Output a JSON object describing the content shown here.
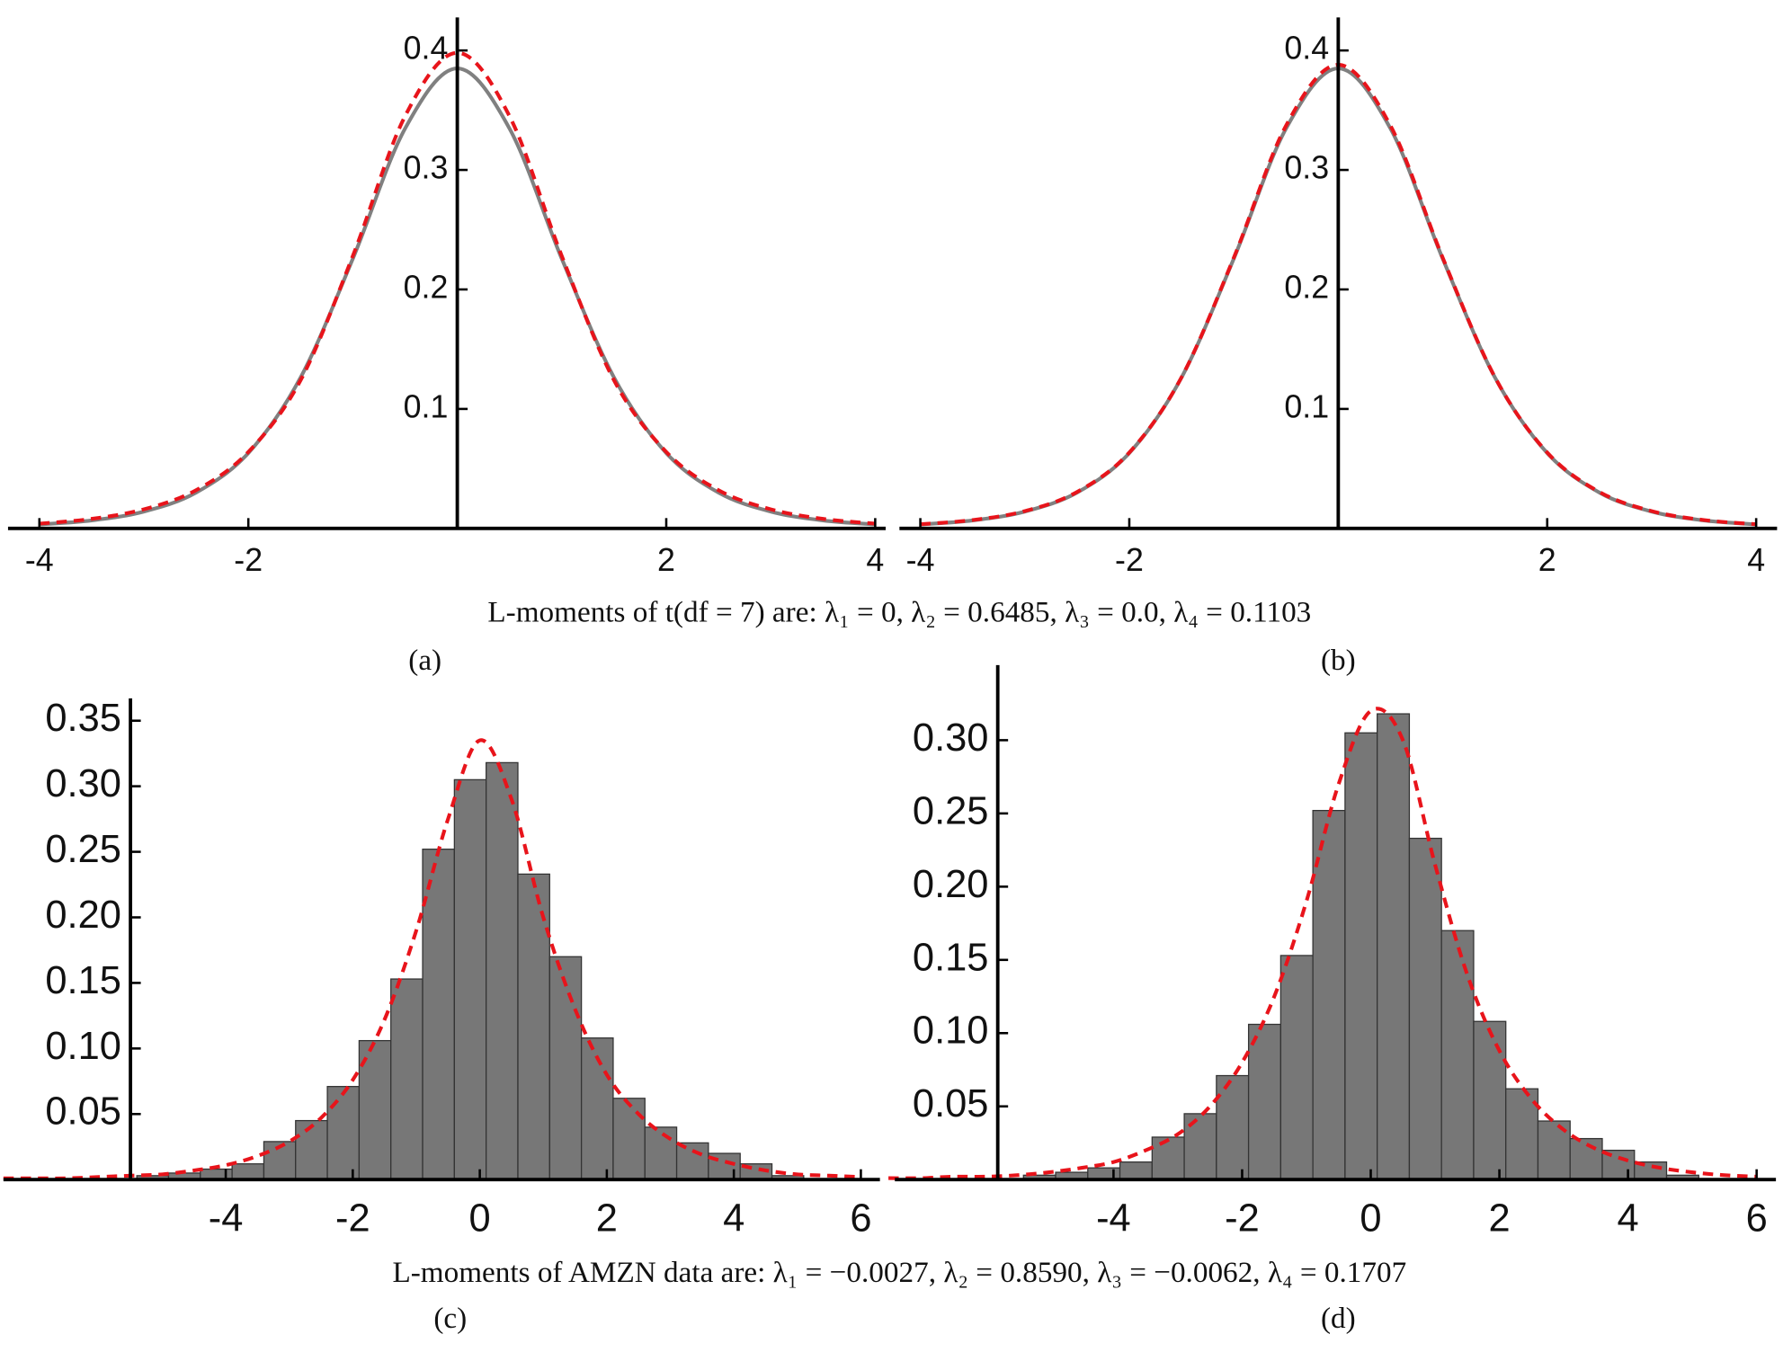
{
  "figure_captions": [
    "L-moments of t(df = 7) are: λ₁ = 0, λ₂ = 0.6485, λ₃ = 0.0, λ₄ = 0.1103",
    "L-moments of AMZN data are: λ₁ = −0.0027, λ₂ = 0.8590, λ₃ = −0.0062, λ₄ = 0.1707"
  ],
  "chart_data": [
    {
      "type": "line",
      "label": "(a)",
      "xlim": [
        -4.3,
        4.1
      ],
      "ylim": [
        0,
        0.42
      ],
      "xticks": [
        -4,
        -2,
        2,
        4
      ],
      "yticks": [
        0.1,
        0.2,
        0.3,
        0.4
      ],
      "y_axis_position": 0,
      "x": [
        -4,
        -3.5,
        -3,
        -2.5,
        -2,
        -1.5,
        -1,
        -0.5,
        0,
        0.5,
        1,
        1.5,
        2,
        2.5,
        3,
        3.5,
        4
      ],
      "series": [
        {
          "color": "#808080",
          "line_style": "solid",
          "values": [
            0.0033,
            0.0067,
            0.0141,
            0.03,
            0.0631,
            0.1263,
            0.2257,
            0.3346,
            0.385,
            0.3346,
            0.2257,
            0.1263,
            0.0631,
            0.03,
            0.0141,
            0.0067,
            0.0033
          ]
        },
        {
          "color": "#e8141b",
          "line_style": "dashed",
          "values": [
            0.004,
            0.008,
            0.016,
            0.032,
            0.064,
            0.124,
            0.228,
            0.345,
            0.398,
            0.345,
            0.228,
            0.124,
            0.064,
            0.032,
            0.016,
            0.008,
            0.004
          ]
        }
      ]
    },
    {
      "type": "line",
      "label": "(b)",
      "xlim": [
        -4.2,
        4.2
      ],
      "ylim": [
        0,
        0.42
      ],
      "xticks": [
        -4,
        -2,
        2,
        4
      ],
      "yticks": [
        0.1,
        0.2,
        0.3,
        0.4
      ],
      "y_axis_position": 0,
      "x": [
        -4,
        -3.5,
        -3,
        -2.5,
        -2,
        -1.5,
        -1,
        -0.5,
        0,
        0.5,
        1,
        1.5,
        2,
        2.5,
        3,
        3.5,
        4
      ],
      "series": [
        {
          "color": "#808080",
          "line_style": "solid",
          "values": [
            0.0033,
            0.0067,
            0.0141,
            0.03,
            0.0631,
            0.1263,
            0.2257,
            0.3346,
            0.385,
            0.3346,
            0.2257,
            0.1263,
            0.0631,
            0.03,
            0.0141,
            0.0067,
            0.0033
          ]
        },
        {
          "color": "#e8141b",
          "line_style": "dashed",
          "values": [
            0.0035,
            0.007,
            0.0145,
            0.0305,
            0.0635,
            0.1265,
            0.2265,
            0.337,
            0.388,
            0.337,
            0.2265,
            0.1265,
            0.0635,
            0.0305,
            0.0145,
            0.007,
            0.0035
          ]
        }
      ]
    },
    {
      "type": "histogram",
      "label": "(c)",
      "xlim": [
        -7.5,
        6.3
      ],
      "ylim": [
        0,
        0.36
      ],
      "xticks": [
        -4,
        -2,
        0,
        2,
        4,
        6
      ],
      "yticks": [
        0.05,
        {
          "value": 0.1,
          "label": "0.10"
        },
        0.15,
        {
          "value": 0.2,
          "label": "0.20"
        },
        0.25,
        {
          "value": 0.3,
          "label": "0.30"
        },
        0.35
      ],
      "y_axis_position": -5.5,
      "color": "#777777",
      "bins": [
        -5.4,
        -4.9,
        -4.4,
        -3.9,
        -3.4,
        -2.9,
        -2.4,
        -1.9,
        -1.4,
        -0.9,
        -0.4,
        0.1,
        0.6,
        1.1,
        1.6,
        2.1,
        2.6,
        3.1,
        3.6,
        4.1,
        4.6,
        5.1
      ],
      "counts": [
        0.003,
        0.005,
        0.008,
        0.012,
        0.029,
        0.045,
        0.071,
        0.106,
        0.153,
        0.252,
        0.305,
        0.318,
        0.233,
        0.17,
        0.108,
        0.062,
        0.04,
        0.028,
        0.02,
        0.012,
        0.003
      ],
      "curve": {
        "color": "#e8141b",
        "line_style": "dashed",
        "x": [
          -7.5,
          -7,
          -6.5,
          -6,
          -5.5,
          -5,
          -4.5,
          -4,
          -3.5,
          -3,
          -2.5,
          -2,
          -1.5,
          -1,
          -0.5,
          0,
          0.5,
          1,
          1.5,
          2,
          2.5,
          3,
          3.5,
          4,
          4.5,
          5,
          5.5,
          6
        ],
        "values": [
          0.001,
          0.001,
          0.001,
          0.002,
          0.003,
          0.004,
          0.007,
          0.011,
          0.018,
          0.029,
          0.047,
          0.076,
          0.122,
          0.19,
          0.275,
          0.335,
          0.29,
          0.2,
          0.13,
          0.08,
          0.05,
          0.031,
          0.019,
          0.012,
          0.007,
          0.004,
          0.003,
          0.002
        ]
      }
    },
    {
      "type": "histogram",
      "label": "(d)",
      "xlim": [
        -7.4,
        6.3
      ],
      "ylim": [
        0,
        0.345
      ],
      "xticks": [
        -4,
        -2,
        0,
        2,
        4,
        6
      ],
      "yticks": [
        0.05,
        {
          "value": 0.1,
          "label": "0.10"
        },
        0.15,
        {
          "value": 0.2,
          "label": "0.20"
        },
        0.25,
        {
          "value": 0.3,
          "label": "0.30"
        }
      ],
      "y_axis_position": -5.8,
      "color": "#777777",
      "bins": [
        -5.4,
        -4.9,
        -4.4,
        -3.9,
        -3.4,
        -2.9,
        -2.4,
        -1.9,
        -1.4,
        -0.9,
        -0.4,
        0.1,
        0.6,
        1.1,
        1.6,
        2.1,
        2.6,
        3.1,
        3.6,
        4.1,
        4.6,
        5.1
      ],
      "counts": [
        0.003,
        0.005,
        0.008,
        0.012,
        0.029,
        0.045,
        0.071,
        0.106,
        0.153,
        0.252,
        0.305,
        0.318,
        0.233,
        0.17,
        0.108,
        0.062,
        0.04,
        0.028,
        0.02,
        0.012,
        0.003
      ],
      "curve": {
        "color": "#e8141b",
        "line_style": "dashed",
        "x": [
          -7.5,
          -7,
          -6.5,
          -6,
          -5.5,
          -5,
          -4.5,
          -4,
          -3.5,
          -3,
          -2.5,
          -2,
          -1.5,
          -1,
          -0.5,
          0,
          0.5,
          1,
          1.5,
          2,
          2.5,
          3,
          3.5,
          4,
          4.5,
          5,
          5.5,
          6
        ],
        "values": [
          0.001,
          0.001,
          0.002,
          0.002,
          0.003,
          0.005,
          0.008,
          0.012,
          0.02,
          0.031,
          0.05,
          0.08,
          0.125,
          0.19,
          0.27,
          0.32,
          0.3,
          0.215,
          0.14,
          0.088,
          0.055,
          0.034,
          0.021,
          0.013,
          0.008,
          0.005,
          0.003,
          0.002
        ]
      }
    }
  ]
}
